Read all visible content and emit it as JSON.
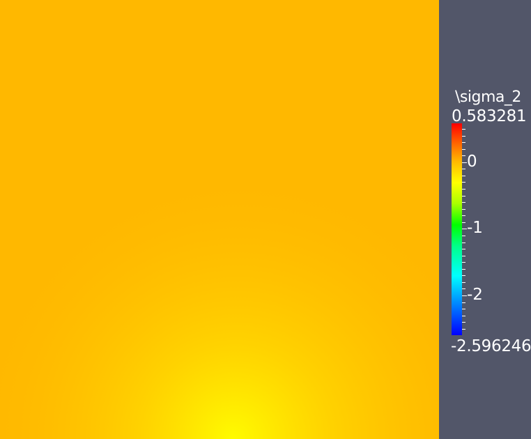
{
  "colors": {
    "background": "#525669",
    "field_base": "#ffb800",
    "field_highlight": "#ffff00",
    "field_hotspot": "#33dd00",
    "text": "#ffffff"
  },
  "legend": {
    "title": "\\sigma_2",
    "max_label": "0.583281",
    "min_label": "-2.596246",
    "range": [
      -2.596246,
      0.583281
    ],
    "colormap": [
      "#0000ff",
      "#00ffff",
      "#00ff00",
      "#ffff00",
      "#ff0000"
    ],
    "major_ticks": [
      {
        "value": 0,
        "label": "0"
      },
      {
        "value": -1,
        "label": "-1"
      },
      {
        "value": -2,
        "label": "-2"
      }
    ],
    "minor_tick_step": 0.1
  }
}
